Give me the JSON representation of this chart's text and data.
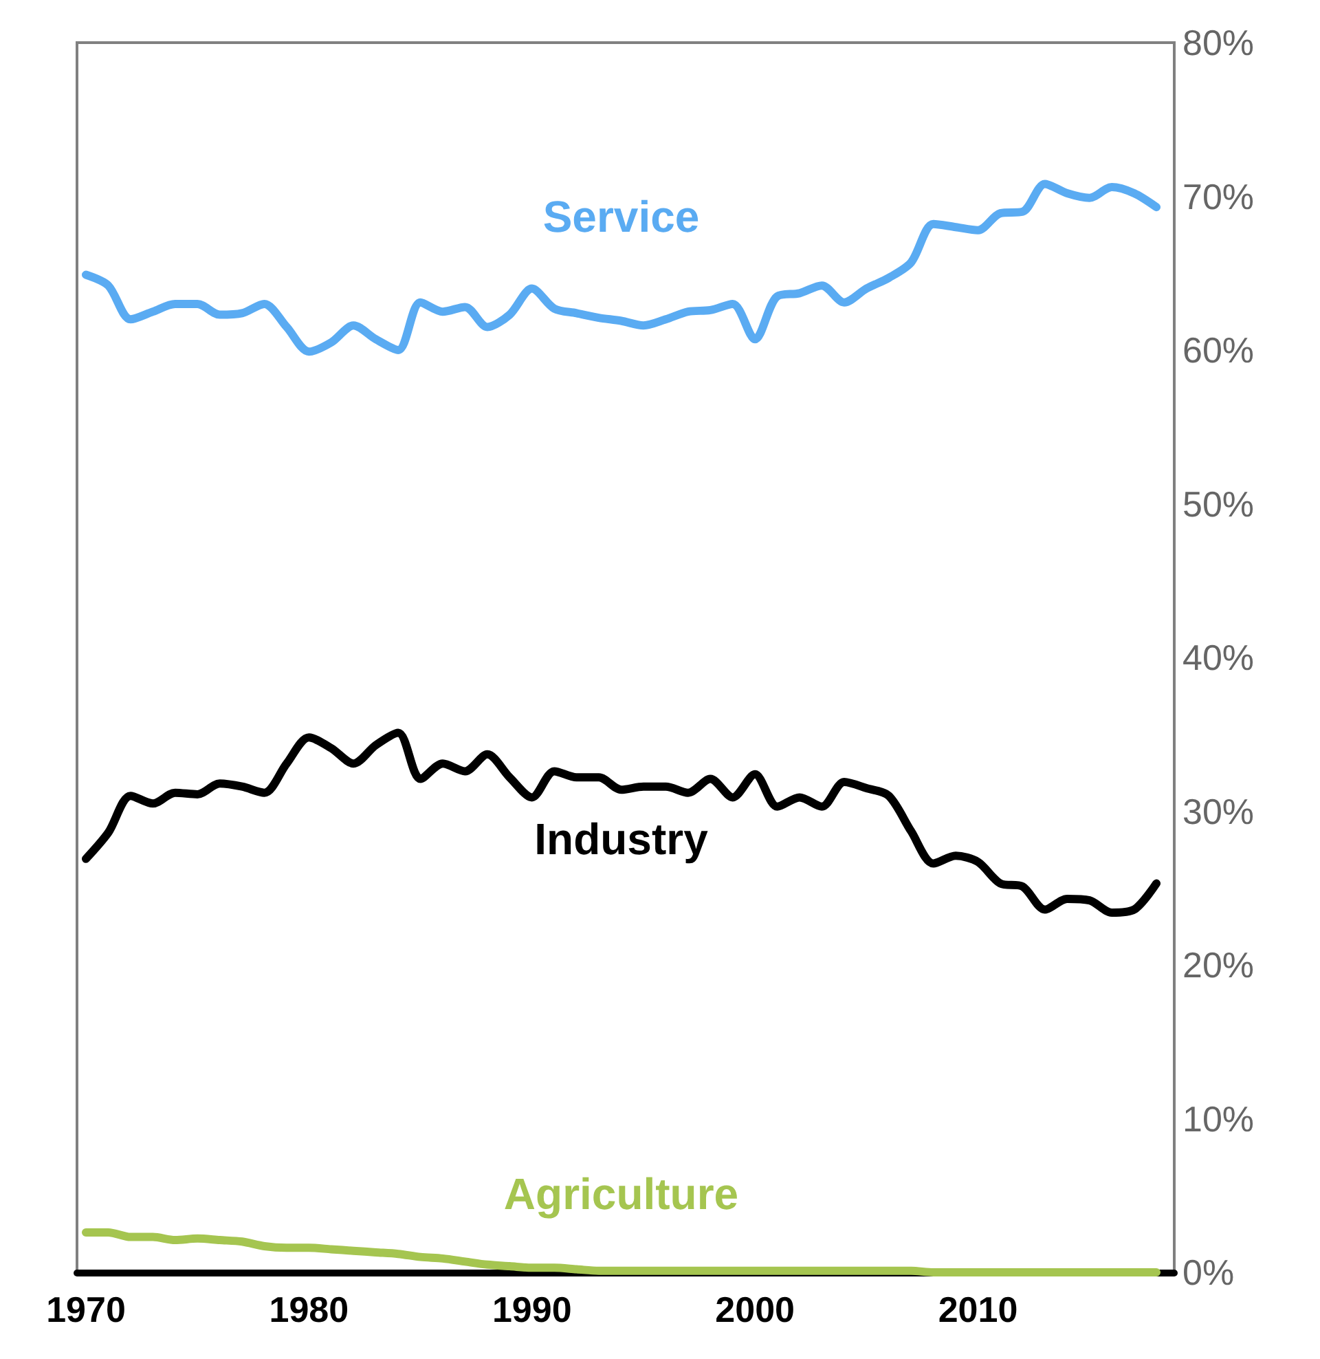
{
  "chart_data": {
    "type": "line",
    "x": [
      1970,
      1971,
      1972,
      1973,
      1974,
      1975,
      1976,
      1977,
      1978,
      1979,
      1980,
      1981,
      1982,
      1983,
      1984,
      1985,
      1986,
      1987,
      1988,
      1989,
      1990,
      1991,
      1992,
      1993,
      1994,
      1995,
      1996,
      1997,
      1998,
      1999,
      2000,
      2001,
      2002,
      2003,
      2004,
      2005,
      2006,
      2007,
      2008,
      2009,
      2010,
      2011,
      2012,
      2013,
      2014,
      2015,
      2016,
      2017,
      2018
    ],
    "series": [
      {
        "name": "Service",
        "color": "#5aabf2",
        "values": [
          64.9,
          64.2,
          62.0,
          62.5,
          63.0,
          63.0,
          62.3,
          62.4,
          63.0,
          61.5,
          59.9,
          60.5,
          61.6,
          60.7,
          60.0,
          63.1,
          62.5,
          62.8,
          61.5,
          62.3,
          64.0,
          62.7,
          62.4,
          62.1,
          61.9,
          61.6,
          62.0,
          62.5,
          62.6,
          63.0,
          60.7,
          63.5,
          63.7,
          64.2,
          63.1,
          64.0,
          64.7,
          65.7,
          68.2,
          68.0,
          67.8,
          68.9,
          69.0,
          70.8,
          70.2,
          69.9,
          70.6,
          70.2,
          69.3
        ]
      },
      {
        "name": "Industry",
        "color": "#000000",
        "values": [
          26.9,
          28.6,
          31.0,
          30.5,
          31.2,
          31.1,
          31.8,
          31.6,
          31.2,
          33.1,
          34.8,
          34.1,
          33.1,
          34.3,
          35.1,
          32.1,
          33.1,
          32.6,
          33.7,
          32.2,
          30.9,
          32.6,
          32.2,
          32.2,
          31.4,
          31.6,
          31.6,
          31.2,
          32.1,
          30.9,
          32.4,
          30.3,
          30.9,
          30.3,
          31.9,
          31.5,
          31.0,
          28.7,
          26.6,
          27.1,
          26.7,
          25.3,
          25.1,
          23.6,
          24.3,
          24.2,
          23.4,
          23.6,
          25.3
        ]
      },
      {
        "name": "Agriculture",
        "color": "#a5c550",
        "values": [
          2.6,
          2.6,
          2.3,
          2.3,
          2.1,
          2.2,
          2.1,
          2.0,
          1.7,
          1.6,
          1.6,
          1.5,
          1.4,
          1.3,
          1.2,
          1.0,
          0.9,
          0.7,
          0.5,
          0.4,
          0.3,
          0.3,
          0.2,
          0.1,
          0.1,
          0.1,
          0.1,
          0.1,
          0.1,
          0.1,
          0.1,
          0.1,
          0.1,
          0.1,
          0.1,
          0.1,
          0.1,
          0.1,
          0.0,
          0.0,
          0.0,
          0.0,
          0.0,
          0.0,
          0.0,
          0.0,
          0.0,
          0.0,
          0.0
        ]
      }
    ],
    "xlim": [
      1969.6,
      2018.8
    ],
    "xticks": [
      1970,
      1980,
      1990,
      2000,
      2010
    ],
    "ylim": [
      0,
      80
    ],
    "yticks": [
      {
        "value": 0,
        "label": "0%"
      },
      {
        "value": 10,
        "label": "10%"
      },
      {
        "value": 20,
        "label": "20%"
      },
      {
        "value": 30,
        "label": "30%"
      },
      {
        "value": 40,
        "label": "40%"
      },
      {
        "value": 50,
        "label": "50%"
      },
      {
        "value": 60,
        "label": "60%"
      },
      {
        "value": 70,
        "label": "70%"
      },
      {
        "value": 80,
        "label": "80%"
      }
    ],
    "grid": false,
    "legend": false,
    "marker": "none",
    "line_style": "solid"
  }
}
